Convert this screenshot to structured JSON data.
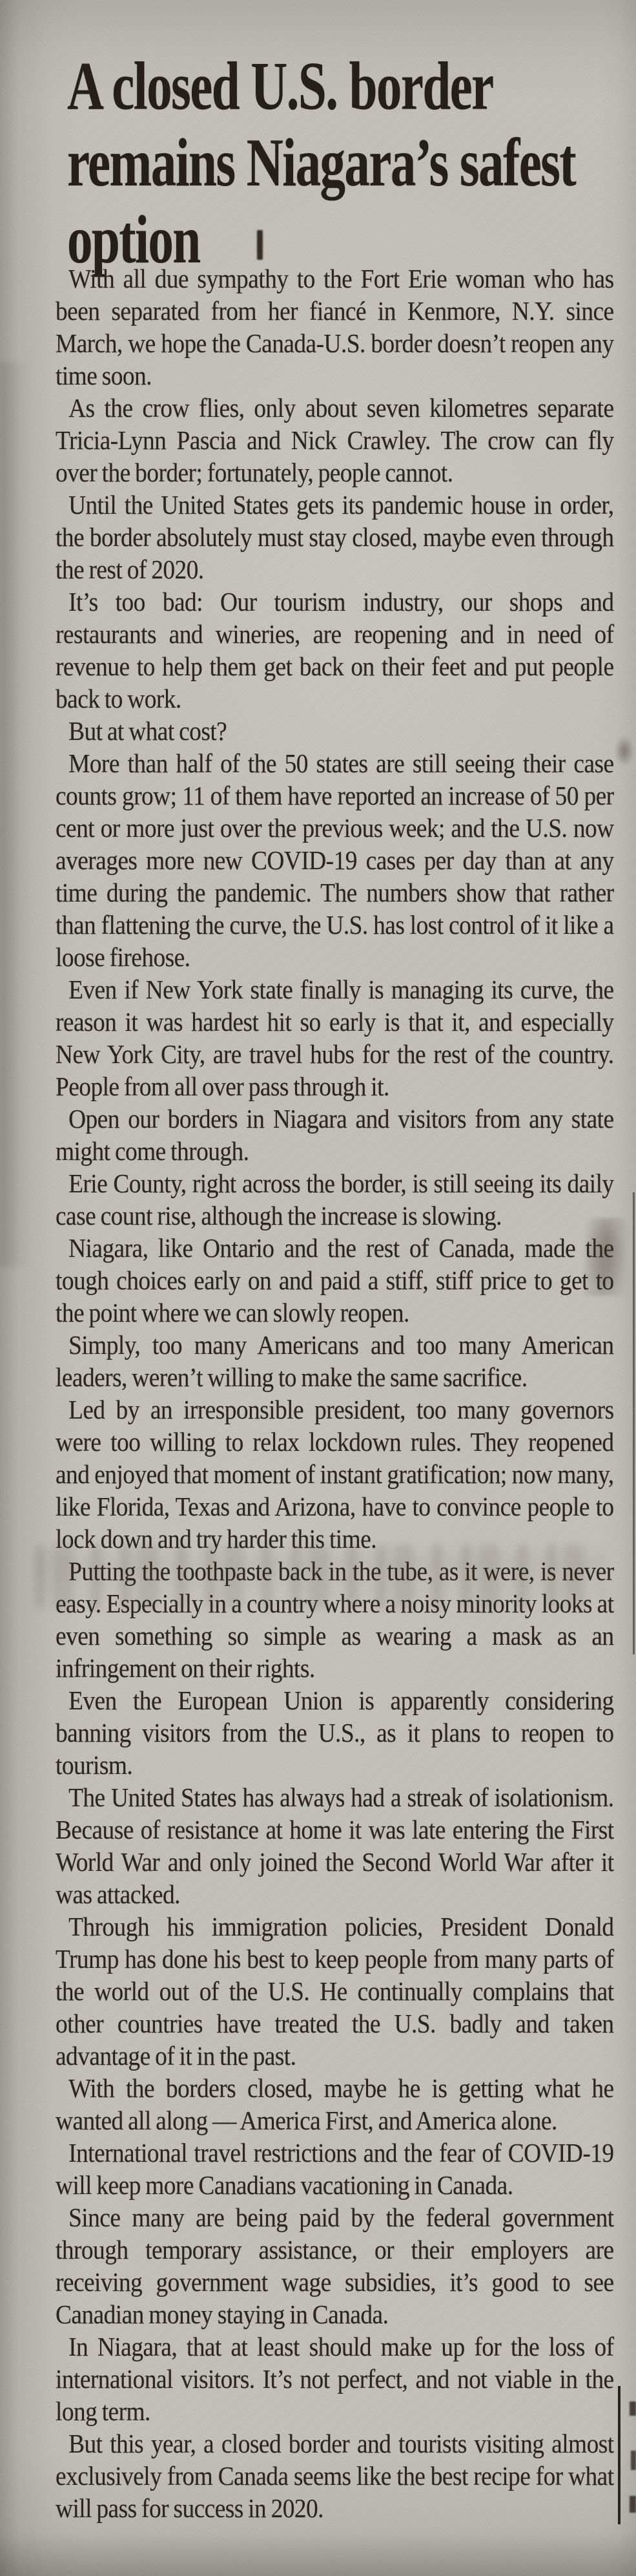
{
  "colors": {
    "paper": "#c4c2ba",
    "ink": "#2a231b",
    "headline_ink": "#241d16"
  },
  "article": {
    "headline": "A closed U.S. border remains Niagara’s safest option",
    "paragraphs": [
      "With all due sympathy to the Fort Erie woman who has been separated from her fiancé in Kenmore, N.Y. since March, we hope the Canada-U.S. border doesn’t reopen any time soon.",
      "As the crow flies, only about seven kilometres separate Tricia-Lynn Pascia and Nick Crawley. The crow can fly over the border; fortunately, people cannot.",
      "Until the United States gets its pandemic house in order, the border absolutely must stay closed, maybe even through the rest of 2020.",
      "It’s too bad: Our tourism industry, our shops and restaurants and wineries, are reopening and in need of revenue to help them get back on their feet and put people back to work.",
      "But at what cost?",
      "More than half of the 50 states are still seeing their case counts grow; 11 of them have reported an increase of 50 per cent or more just over the previous week; and the U.S. now averages more new COVID-19 cases per day than at any time during the pandemic. The numbers show that rather than flattening the curve, the U.S. has lost control of it like a loose firehose.",
      "Even if New York state finally is managing its curve, the reason it was hardest hit so early is that it, and especially New York City, are travel hubs for the rest of the country. People from all over pass through it.",
      "Open our borders in Niagara and visitors from any state might come through.",
      "Erie County, right across the border, is still seeing its daily case count rise, although the increase is slowing.",
      "Niagara, like Ontario and the rest of Canada, made the tough choices early on and paid a stiff, stiff price to get to the point where we can slowly reopen.",
      "Simply, too many Americans and too many American leaders, weren’t willing to make the same sacrifice.",
      "Led by an irresponsible president, too many governors were too willing to relax lockdown rules. They reopened and enjoyed that moment of instant gratification; now many, like Florida, Texas and Arizona, have to convince people to lock down and try harder this time.",
      "Putting the toothpaste back in the tube, as it were, is never easy. Especially in a country where a noisy minority looks at even something so simple as wearing a mask as an infringement on their rights.",
      "Even the European Union is apparently considering banning visitors from the U.S., as it plans to reopen to tourism.",
      "The United States has always had a streak of isolationism. Because of resistance at home it was late entering the First World War and only joined the Second World War after it was attacked.",
      "Through his immigration policies, President Donald Trump has done his best to keep people from many parts of the world out of the U.S. He continually complains that other countries have treated the U.S. badly and taken advantage of it in the past.",
      "With the borders closed, maybe he is getting what he wanted all along — America First, and America alone.",
      "International travel restrictions and the fear of COVID-19 will keep more Canadians vacationing in Canada.",
      "Since many are being paid by the federal government through temporary assistance, or their employers are receiving government wage subsidies, it’s good to see Canadian money staying in Canada.",
      "In Niagara, that at least should make up for the loss of international visitors. It’s not perfect, and not viable in the long term.",
      "But this year, a closed border and tourists visiting almost exclusively from Canada seems like the best recipe for what will pass for success in 2020."
    ]
  }
}
